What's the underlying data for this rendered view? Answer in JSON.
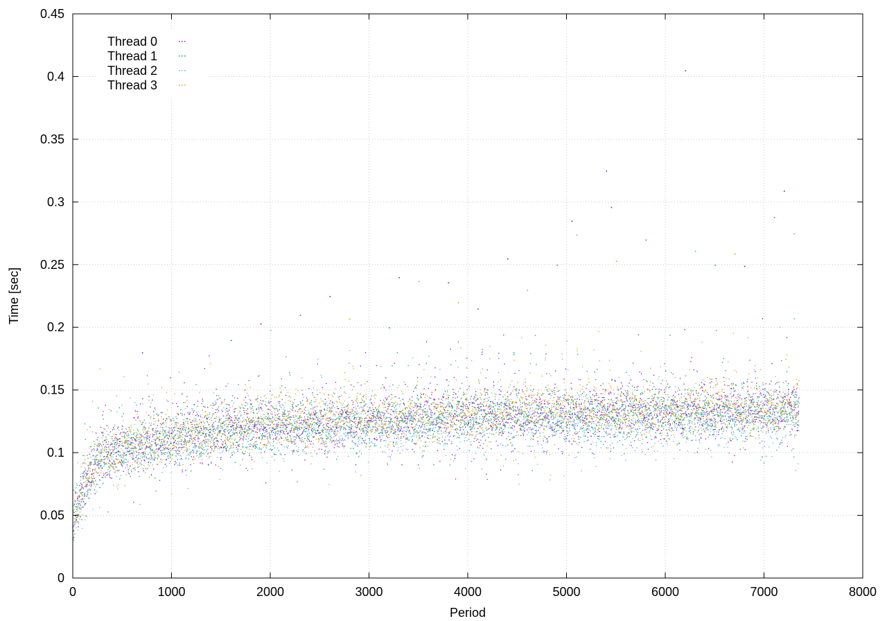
{
  "chart_data": {
    "type": "scatter",
    "title": "",
    "xlabel": "Period",
    "ylabel": "Time [sec]",
    "xlim": [
      0,
      8000
    ],
    "ylim": [
      0,
      0.45
    ],
    "x_ticks": [
      "0",
      "1000",
      "2000",
      "3000",
      "4000",
      "5000",
      "6000",
      "7000",
      "8000"
    ],
    "y_ticks": [
      "0",
      "0.05",
      "0.1",
      "0.15",
      "0.2",
      "0.25",
      "0.3",
      "0.35",
      "0.4",
      "0.45"
    ],
    "grid": true,
    "legend_position": "top-left",
    "x_range_of_data": [
      0,
      7350
    ],
    "series": [
      {
        "name": "Thread 0",
        "color": "#9400d3",
        "trend": [
          [
            0,
            0.045
          ],
          [
            100,
            0.075
          ],
          [
            250,
            0.095
          ],
          [
            500,
            0.104
          ],
          [
            1000,
            0.112
          ],
          [
            1500,
            0.118
          ],
          [
            2000,
            0.122
          ],
          [
            3000,
            0.127
          ],
          [
            4000,
            0.13
          ],
          [
            5000,
            0.132
          ],
          [
            6000,
            0.134
          ],
          [
            7000,
            0.135
          ],
          [
            7350,
            0.136
          ]
        ],
        "outliers": [
          [
            700,
            0.18
          ],
          [
            1900,
            0.203
          ],
          [
            2600,
            0.225
          ],
          [
            3300,
            0.24
          ],
          [
            3800,
            0.236
          ],
          [
            4400,
            0.255
          ],
          [
            5050,
            0.285
          ],
          [
            5400,
            0.325
          ],
          [
            5450,
            0.296
          ],
          [
            6200,
            0.405
          ],
          [
            6800,
            0.249
          ],
          [
            7200,
            0.309
          ]
        ]
      },
      {
        "name": "Thread 1",
        "color": "#009e73",
        "trend": [
          [
            0,
            0.044
          ],
          [
            100,
            0.074
          ],
          [
            250,
            0.094
          ],
          [
            500,
            0.103
          ],
          [
            1000,
            0.111
          ],
          [
            1500,
            0.117
          ],
          [
            2000,
            0.121
          ],
          [
            3000,
            0.126
          ],
          [
            4000,
            0.129
          ],
          [
            5000,
            0.131
          ],
          [
            6000,
            0.133
          ],
          [
            7000,
            0.134
          ],
          [
            7350,
            0.135
          ]
        ],
        "outliers": [
          [
            1600,
            0.19
          ],
          [
            2300,
            0.21
          ],
          [
            3200,
            0.2
          ],
          [
            4100,
            0.215
          ],
          [
            4900,
            0.25
          ],
          [
            5800,
            0.27
          ],
          [
            6500,
            0.25
          ],
          [
            7100,
            0.288
          ]
        ]
      },
      {
        "name": "Thread 2",
        "color": "#56b4e9",
        "trend": [
          [
            0,
            0.043
          ],
          [
            100,
            0.072
          ],
          [
            250,
            0.092
          ],
          [
            500,
            0.101
          ],
          [
            1000,
            0.109
          ],
          [
            1500,
            0.114
          ],
          [
            2000,
            0.118
          ],
          [
            3000,
            0.122
          ],
          [
            4000,
            0.125
          ],
          [
            5000,
            0.126
          ],
          [
            6000,
            0.127
          ],
          [
            7000,
            0.128
          ],
          [
            7350,
            0.128
          ]
        ],
        "outliers": [
          [
            2000,
            0.198
          ],
          [
            3500,
            0.237
          ],
          [
            4600,
            0.23
          ],
          [
            5100,
            0.274
          ],
          [
            6300,
            0.261
          ],
          [
            7300,
            0.275
          ]
        ]
      },
      {
        "name": "Thread 3",
        "color": "#e69f00",
        "trend": [
          [
            0,
            0.044
          ],
          [
            100,
            0.074
          ],
          [
            250,
            0.094
          ],
          [
            500,
            0.104
          ],
          [
            1000,
            0.112
          ],
          [
            1500,
            0.118
          ],
          [
            2000,
            0.122
          ],
          [
            3000,
            0.128
          ],
          [
            4000,
            0.131
          ],
          [
            5000,
            0.133
          ],
          [
            6000,
            0.134
          ],
          [
            7000,
            0.135
          ],
          [
            7350,
            0.137
          ]
        ],
        "outliers": [
          [
            2800,
            0.207
          ],
          [
            3900,
            0.22
          ],
          [
            5500,
            0.253
          ],
          [
            6700,
            0.259
          ]
        ]
      }
    ]
  }
}
